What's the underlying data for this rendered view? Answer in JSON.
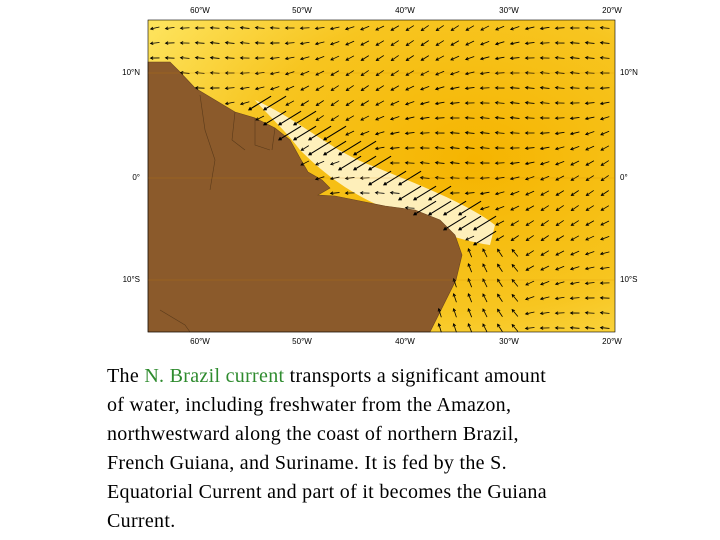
{
  "map": {
    "top_labels": [
      "60°W",
      "50°W",
      "40°W",
      "30°W",
      "20°W"
    ],
    "bottom_labels": [
      "60°W",
      "50°W",
      "40°W",
      "30°W",
      "20°W"
    ],
    "left_labels": [
      "10°N",
      "0°",
      "10°S"
    ],
    "right_labels": [
      "10°N",
      "0°",
      "10°S"
    ]
  },
  "caption": {
    "lead": "The",
    "highlight": "N. Brazil current",
    "lines": [
      "transports a significant amount",
      "of water, including freshwater from the Amazon,",
      "northwestward along the coast of northern Brazil,",
      "French Guiana, and Suriname. It is fed by the S.",
      "Equatorial Current and part of it becomes the Guiana",
      "Current."
    ]
  }
}
